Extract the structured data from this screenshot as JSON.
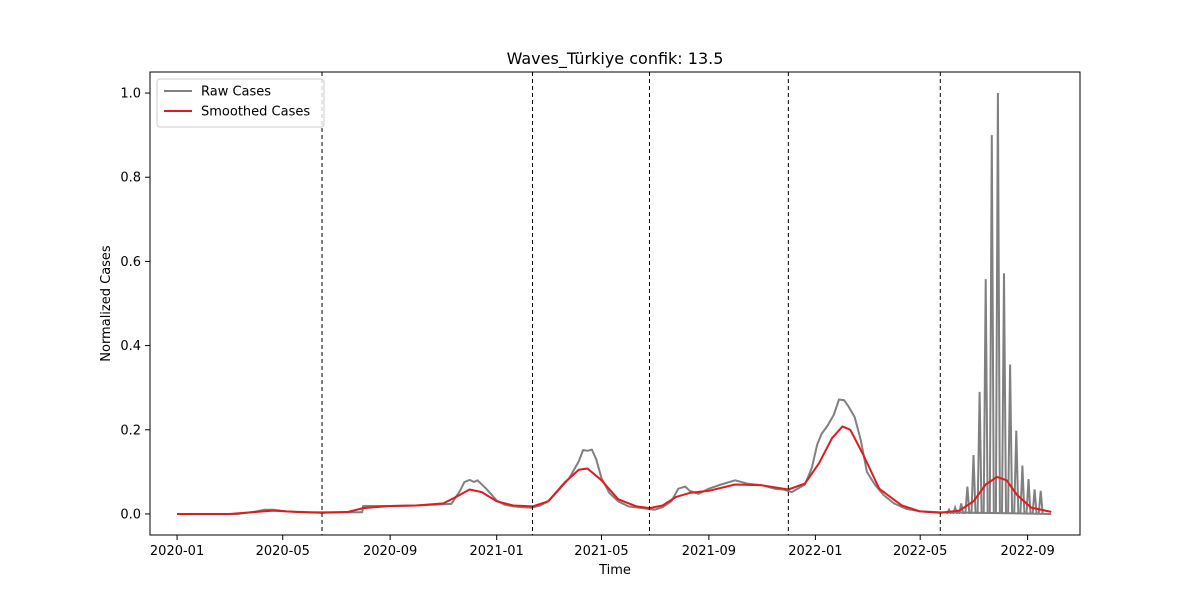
{
  "chart_data": {
    "type": "line",
    "title": "Waves_Türkiye confik: 13.5",
    "xlabel": "Time",
    "ylabel": "Normalized Cases",
    "x_type": "date",
    "xlim": [
      "2019-12-01",
      "2022-10-31"
    ],
    "ylim": [
      -0.05,
      1.05
    ],
    "x_ticks": [
      {
        "date": "2020-01-01",
        "label": "2020-01"
      },
      {
        "date": "2020-05-01",
        "label": "2020-05"
      },
      {
        "date": "2020-09-01",
        "label": "2020-09"
      },
      {
        "date": "2021-01-01",
        "label": "2021-01"
      },
      {
        "date": "2021-05-01",
        "label": "2021-05"
      },
      {
        "date": "2021-09-01",
        "label": "2021-09"
      },
      {
        "date": "2022-01-01",
        "label": "2022-01"
      },
      {
        "date": "2022-05-01",
        "label": "2022-05"
      },
      {
        "date": "2022-09-01",
        "label": "2022-09"
      }
    ],
    "y_ticks": [
      {
        "value": 0.0,
        "label": "0.0"
      },
      {
        "value": 0.2,
        "label": "0.2"
      },
      {
        "value": 0.4,
        "label": "0.4"
      },
      {
        "value": 0.6,
        "label": "0.6"
      },
      {
        "value": 0.8,
        "label": "0.8"
      },
      {
        "value": 1.0,
        "label": "1.0"
      }
    ],
    "grid": false,
    "legend": {
      "position": "top-left"
    },
    "wave_boundaries": [
      "2020-06-15",
      "2021-02-11",
      "2021-06-25",
      "2021-12-01",
      "2022-05-24"
    ],
    "series": [
      {
        "name": "Raw Cases",
        "color": "#808080",
        "style": "solid",
        "points": [
          [
            "2020-01-01",
            0.0
          ],
          [
            "2020-03-10",
            0.0
          ],
          [
            "2020-04-01",
            0.006
          ],
          [
            "2020-04-10",
            0.01
          ],
          [
            "2020-04-20",
            0.01
          ],
          [
            "2020-05-05",
            0.006
          ],
          [
            "2020-06-01",
            0.004
          ],
          [
            "2020-06-30",
            0.004
          ],
          [
            "2020-07-31",
            0.004
          ],
          [
            "2020-08-01",
            0.019
          ],
          [
            "2020-09-01",
            0.019
          ],
          [
            "2020-10-01",
            0.02
          ],
          [
            "2020-11-10",
            0.024
          ],
          [
            "2020-11-20",
            0.055
          ],
          [
            "2020-11-25",
            0.076
          ],
          [
            "2020-12-01",
            0.081
          ],
          [
            "2020-12-06",
            0.076
          ],
          [
            "2020-12-10",
            0.08
          ],
          [
            "2020-12-20",
            0.06
          ],
          [
            "2021-01-01",
            0.032
          ],
          [
            "2021-01-10",
            0.022
          ],
          [
            "2021-01-20",
            0.018
          ],
          [
            "2021-01-31",
            0.016
          ],
          [
            "2021-02-10",
            0.015
          ],
          [
            "2021-02-20",
            0.02
          ],
          [
            "2021-03-01",
            0.03
          ],
          [
            "2021-03-10",
            0.05
          ],
          [
            "2021-03-25",
            0.085
          ],
          [
            "2021-04-05",
            0.125
          ],
          [
            "2021-04-10",
            0.152
          ],
          [
            "2021-04-15",
            0.15
          ],
          [
            "2021-04-20",
            0.153
          ],
          [
            "2021-04-25",
            0.13
          ],
          [
            "2021-05-01",
            0.085
          ],
          [
            "2021-05-10",
            0.05
          ],
          [
            "2021-05-20",
            0.03
          ],
          [
            "2021-06-01",
            0.018
          ],
          [
            "2021-06-20",
            0.013
          ],
          [
            "2021-07-01",
            0.01
          ],
          [
            "2021-07-10",
            0.016
          ],
          [
            "2021-07-20",
            0.03
          ],
          [
            "2021-07-28",
            0.06
          ],
          [
            "2021-08-05",
            0.065
          ],
          [
            "2021-08-10",
            0.055
          ],
          [
            "2021-08-20",
            0.048
          ],
          [
            "2021-09-01",
            0.06
          ],
          [
            "2021-09-15",
            0.07
          ],
          [
            "2021-10-01",
            0.08
          ],
          [
            "2021-10-15",
            0.072
          ],
          [
            "2021-11-01",
            0.068
          ],
          [
            "2021-11-15",
            0.06
          ],
          [
            "2021-11-25",
            0.058
          ],
          [
            "2021-12-05",
            0.052
          ],
          [
            "2021-12-20",
            0.07
          ],
          [
            "2021-12-28",
            0.11
          ],
          [
            "2022-01-03",
            0.165
          ],
          [
            "2022-01-08",
            0.19
          ],
          [
            "2022-01-15",
            0.21
          ],
          [
            "2022-01-22",
            0.235
          ],
          [
            "2022-01-28",
            0.272
          ],
          [
            "2022-02-03",
            0.27
          ],
          [
            "2022-02-08",
            0.255
          ],
          [
            "2022-02-15",
            0.23
          ],
          [
            "2022-02-22",
            0.175
          ],
          [
            "2022-03-01",
            0.1
          ],
          [
            "2022-03-10",
            0.07
          ],
          [
            "2022-03-20",
            0.045
          ],
          [
            "2022-04-01",
            0.025
          ],
          [
            "2022-04-15",
            0.012
          ],
          [
            "2022-05-01",
            0.006
          ],
          [
            "2022-05-24",
            0.004
          ]
        ]
      },
      {
        "name": "Smoothed Cases",
        "color": "#e31a1c",
        "style": "solid",
        "points": [
          [
            "2020-01-01",
            0.0
          ],
          [
            "2020-03-01",
            0.0
          ],
          [
            "2020-04-01",
            0.005
          ],
          [
            "2020-04-20",
            0.008
          ],
          [
            "2020-05-15",
            0.005
          ],
          [
            "2020-06-15",
            0.003
          ],
          [
            "2020-07-15",
            0.005
          ],
          [
            "2020-08-01",
            0.014
          ],
          [
            "2020-09-01",
            0.019
          ],
          [
            "2020-10-01",
            0.02
          ],
          [
            "2020-11-01",
            0.025
          ],
          [
            "2020-11-15",
            0.04
          ],
          [
            "2020-12-01",
            0.058
          ],
          [
            "2020-12-15",
            0.052
          ],
          [
            "2021-01-01",
            0.03
          ],
          [
            "2021-01-20",
            0.02
          ],
          [
            "2021-02-11",
            0.018
          ],
          [
            "2021-03-01",
            0.03
          ],
          [
            "2021-03-20",
            0.075
          ],
          [
            "2021-04-05",
            0.105
          ],
          [
            "2021-04-15",
            0.108
          ],
          [
            "2021-05-01",
            0.08
          ],
          [
            "2021-05-20",
            0.035
          ],
          [
            "2021-06-10",
            0.018
          ],
          [
            "2021-06-25",
            0.014
          ],
          [
            "2021-07-10",
            0.02
          ],
          [
            "2021-07-25",
            0.04
          ],
          [
            "2021-08-10",
            0.05
          ],
          [
            "2021-09-01",
            0.055
          ],
          [
            "2021-10-01",
            0.07
          ],
          [
            "2021-11-01",
            0.068
          ],
          [
            "2021-12-01",
            0.058
          ],
          [
            "2021-12-20",
            0.072
          ],
          [
            "2022-01-05",
            0.12
          ],
          [
            "2022-01-20",
            0.18
          ],
          [
            "2022-02-01",
            0.208
          ],
          [
            "2022-02-10",
            0.2
          ],
          [
            "2022-02-25",
            0.14
          ],
          [
            "2022-03-15",
            0.06
          ],
          [
            "2022-04-10",
            0.02
          ],
          [
            "2022-05-01",
            0.006
          ],
          [
            "2022-05-24",
            0.003
          ],
          [
            "2022-06-15",
            0.008
          ],
          [
            "2022-07-01",
            0.03
          ],
          [
            "2022-07-15",
            0.07
          ],
          [
            "2022-07-28",
            0.088
          ],
          [
            "2022-08-08",
            0.08
          ],
          [
            "2022-08-20",
            0.045
          ],
          [
            "2022-09-05",
            0.015
          ],
          [
            "2022-09-28",
            0.005
          ]
        ]
      }
    ],
    "raw_spikes": [
      [
        "2022-06-03",
        0.01
      ],
      [
        "2022-06-10",
        0.015
      ],
      [
        "2022-06-17",
        0.025
      ],
      [
        "2022-06-24",
        0.065
      ],
      [
        "2022-07-01",
        0.14
      ],
      [
        "2022-07-08",
        0.29
      ],
      [
        "2022-07-15",
        0.558
      ],
      [
        "2022-07-22",
        0.9
      ],
      [
        "2022-07-29",
        1.0
      ],
      [
        "2022-08-05",
        0.572
      ],
      [
        "2022-08-12",
        0.355
      ],
      [
        "2022-08-19",
        0.198
      ],
      [
        "2022-08-26",
        0.115
      ],
      [
        "2022-09-02",
        0.083
      ],
      [
        "2022-09-09",
        0.058
      ],
      [
        "2022-09-16",
        0.055
      ]
    ]
  }
}
